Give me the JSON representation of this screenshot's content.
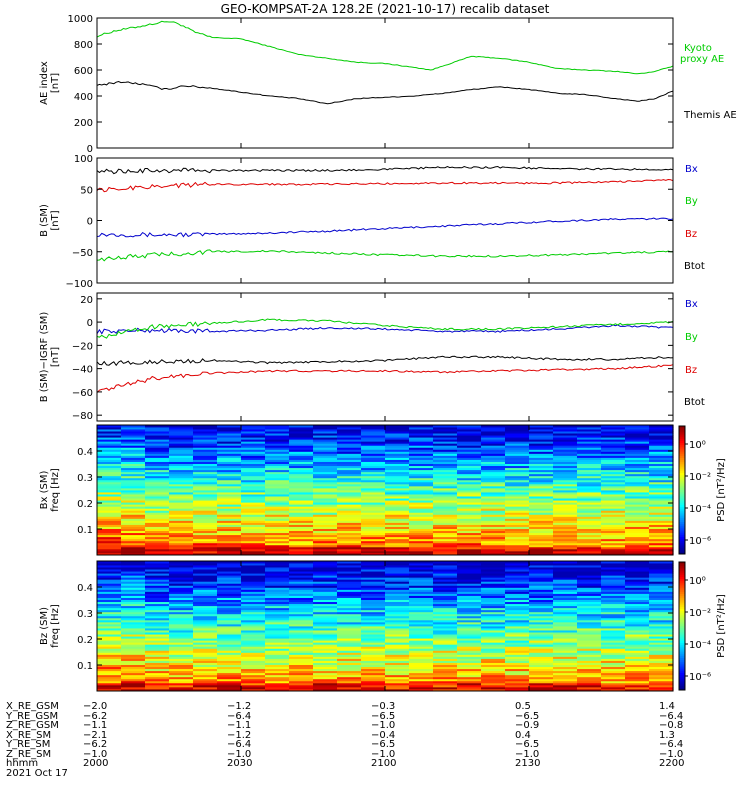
{
  "title": "GEO-KOMPSAT-2A 128.2E (2021-10-17) recalib dataset",
  "colors": {
    "black": "#000000",
    "red": "#dd0000",
    "green": "#00cc00",
    "blue": "#0000cc"
  },
  "chart_data": [
    {
      "type": "line",
      "ylabel": "AE index [nT]",
      "x_hhmm": [
        "2000",
        "2030",
        "2100",
        "2130",
        "2200"
      ],
      "yticks": [
        "0",
        "200",
        "400",
        "600",
        "800",
        "1000"
      ],
      "ylim": [
        0,
        1000
      ],
      "series": [
        {
          "name": "Kyoto proxy AE",
          "color": "#00cc00",
          "x": [
            0,
            0.03,
            0.08,
            0.12,
            0.14,
            0.17,
            0.2,
            0.25,
            0.3,
            0.35,
            0.4,
            0.45,
            0.5,
            0.55,
            0.58,
            0.62,
            0.65,
            0.7,
            0.75,
            0.8,
            0.85,
            0.9,
            0.94,
            0.97,
            1.0
          ],
          "y": [
            860,
            900,
            940,
            975,
            960,
            890,
            850,
            840,
            780,
            720,
            690,
            660,
            650,
            620,
            600,
            660,
            705,
            690,
            660,
            610,
            600,
            590,
            570,
            590,
            630
          ]
        },
        {
          "name": "Themis AE",
          "color": "#000000",
          "x": [
            0,
            0.04,
            0.08,
            0.1,
            0.12,
            0.15,
            0.2,
            0.25,
            0.3,
            0.35,
            0.4,
            0.45,
            0.5,
            0.55,
            0.6,
            0.65,
            0.7,
            0.75,
            0.8,
            0.85,
            0.9,
            0.94,
            0.97,
            1.0
          ],
          "y": [
            480,
            510,
            490,
            470,
            450,
            480,
            460,
            430,
            400,
            380,
            340,
            380,
            390,
            400,
            420,
            450,
            470,
            450,
            420,
            410,
            380,
            360,
            380,
            440
          ]
        }
      ],
      "legend": [
        "Kyoto",
        "proxy AE",
        "Themis AE"
      ]
    },
    {
      "type": "line",
      "ylabel": "B (SM) [nT]",
      "x_hhmm": [
        "2000",
        "2030",
        "2100",
        "2130",
        "2200"
      ],
      "yticks": [
        "−100",
        "−50",
        "0",
        "50",
        "100"
      ],
      "ylim": [
        -100,
        100
      ],
      "series": [
        {
          "name": "Bx",
          "color": "#0000cc",
          "x": [
            0,
            0.1,
            0.2,
            0.3,
            0.4,
            0.5,
            0.6,
            0.7,
            0.8,
            0.9,
            1.0
          ],
          "y": [
            -22,
            -23,
            -22,
            -20,
            -17,
            -13,
            -9,
            -5,
            -1,
            2,
            3
          ]
        },
        {
          "name": "By",
          "color": "#00cc00",
          "x": [
            0,
            0.1,
            0.2,
            0.3,
            0.4,
            0.5,
            0.6,
            0.7,
            0.8,
            0.9,
            1.0
          ],
          "y": [
            -62,
            -55,
            -50,
            -49,
            -52,
            -55,
            -57,
            -57,
            -55,
            -52,
            -50
          ]
        },
        {
          "name": "Bz",
          "color": "#dd0000",
          "x": [
            0,
            0.1,
            0.2,
            0.3,
            0.4,
            0.5,
            0.6,
            0.7,
            0.8,
            0.9,
            1.0
          ],
          "y": [
            48,
            55,
            58,
            58,
            58,
            59,
            60,
            60,
            60,
            62,
            65
          ]
        },
        {
          "name": "Btot",
          "color": "#000000",
          "x": [
            0,
            0.1,
            0.2,
            0.3,
            0.4,
            0.5,
            0.6,
            0.7,
            0.8,
            0.9,
            1.0
          ],
          "y": [
            78,
            80,
            80,
            80,
            80,
            82,
            85,
            85,
            83,
            82,
            82
          ]
        }
      ],
      "legend": [
        "Bx",
        "By",
        "Bz",
        "Btot"
      ]
    },
    {
      "type": "line",
      "ylabel": "B (SM)−IGRF (SM) [nT]",
      "x_hhmm": [
        "2000",
        "2030",
        "2100",
        "2130",
        "2200"
      ],
      "yticks": [
        "−80",
        "−60",
        "−40",
        "−20",
        "0",
        "20"
      ],
      "ylim": [
        -85,
        25
      ],
      "series": [
        {
          "name": "Bx",
          "color": "#0000cc",
          "x": [
            0,
            0.1,
            0.2,
            0.3,
            0.4,
            0.5,
            0.6,
            0.7,
            0.8,
            0.9,
            1.0
          ],
          "y": [
            -8,
            -7,
            -8,
            -7,
            -5,
            -6,
            -8,
            -8,
            -6,
            -3,
            -5
          ]
        },
        {
          "name": "By",
          "color": "#00cc00",
          "x": [
            0,
            0.05,
            0.1,
            0.2,
            0.3,
            0.4,
            0.5,
            0.6,
            0.7,
            0.8,
            0.9,
            1.0
          ],
          "y": [
            -14,
            -8,
            -4,
            -1,
            2,
            1,
            -3,
            -6,
            -6,
            -4,
            -2,
            0
          ]
        },
        {
          "name": "Bz",
          "color": "#dd0000",
          "x": [
            0,
            0.05,
            0.1,
            0.2,
            0.3,
            0.4,
            0.5,
            0.6,
            0.7,
            0.8,
            0.9,
            1.0
          ],
          "y": [
            -60,
            -54,
            -48,
            -44,
            -42,
            -42,
            -42,
            -43,
            -42,
            -41,
            -40,
            -37
          ]
        },
        {
          "name": "Btot",
          "color": "#000000",
          "x": [
            0,
            0.05,
            0.1,
            0.2,
            0.3,
            0.4,
            0.5,
            0.6,
            0.7,
            0.8,
            0.9,
            1.0
          ],
          "y": [
            -36,
            -35,
            -34,
            -33,
            -35,
            -34,
            -33,
            -30,
            -30,
            -32,
            -32,
            -30
          ]
        }
      ],
      "legend": [
        "Bx",
        "By",
        "Bz",
        "Btot"
      ]
    },
    {
      "type": "heatmap",
      "ylabel": "Bx (SM) freq [Hz]",
      "yticks": [
        "0.1",
        "0.2",
        "0.3",
        "0.4"
      ],
      "ylim": [
        0,
        0.5
      ],
      "colorbar_label": "PSD [nT²/Hz]",
      "colorbar_ticks": [
        "10⁰",
        "10⁻²",
        "10⁻⁴",
        "10⁻⁶"
      ]
    },
    {
      "type": "heatmap",
      "ylabel": "Bz (SM) freq [Hz]",
      "yticks": [
        "0.1",
        "0.2",
        "0.3",
        "0.4"
      ],
      "ylim": [
        0,
        0.5
      ],
      "colorbar_label": "PSD [nT²/Hz]",
      "colorbar_ticks": [
        "10⁰",
        "10⁻²",
        "10⁻⁴",
        "10⁻⁶"
      ]
    }
  ],
  "ephemeris": {
    "labels": [
      "X_RE_GSM",
      "Y_RE_GSM",
      "Z_RE_GSM",
      "X_RE_SM",
      "Y_RE_SM",
      "Z_RE_SM",
      "hhmm",
      "2021 Oct 17"
    ],
    "columns": [
      [
        "−2.0",
        "−6.2",
        "−1.1",
        "−2.1",
        "−6.2",
        "−1.0",
        "2000"
      ],
      [
        "−1.2",
        "−6.4",
        "−1.1",
        "−1.2",
        "−6.4",
        "−1.0",
        "2030"
      ],
      [
        "−0.3",
        "−6.5",
        "−1.0",
        "−0.4",
        "−6.5",
        "−1.0",
        "2100"
      ],
      [
        "0.5",
        "−6.5",
        "−0.9",
        "0.4",
        "−6.5",
        "−1.0",
        "2130"
      ],
      [
        "1.4",
        "−6.4",
        "−0.8",
        "1.3",
        "−6.4",
        "−1.0",
        "2200"
      ]
    ]
  }
}
